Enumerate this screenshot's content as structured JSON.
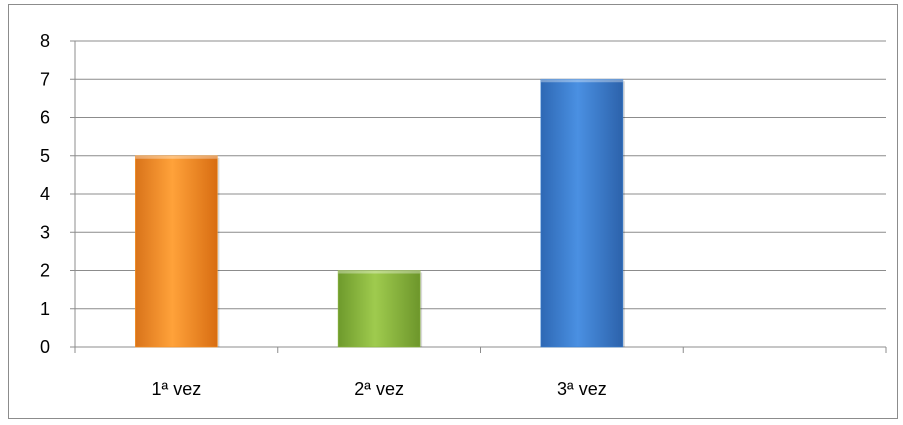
{
  "chart_data": {
    "type": "bar",
    "categories": [
      "1ª vez",
      "2ª vez",
      "3ª vez",
      ""
    ],
    "values": [
      5,
      2,
      7,
      null
    ],
    "colors": [
      "#f7901e",
      "#8ab43e",
      "#3a7fd0",
      null
    ],
    "title": "",
    "xlabel": "",
    "ylabel": "",
    "ylim": [
      0,
      8
    ],
    "yticks": [
      "0",
      "1",
      "2",
      "3",
      "4",
      "5",
      "6",
      "7",
      "8"
    ],
    "grid": true,
    "legend": "none"
  }
}
